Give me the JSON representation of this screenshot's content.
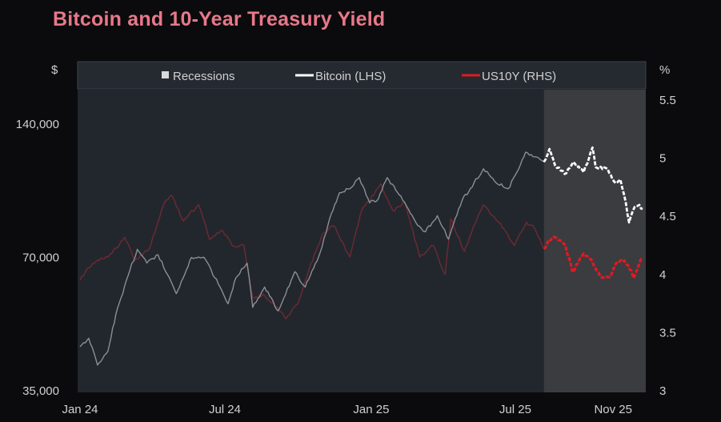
{
  "title": "Bitcoin and 10-Year Treasury Yield",
  "colors": {
    "title": "#e8788a",
    "background": "#0b0b0d",
    "plot_background": "#22272d",
    "recession_shade": "#3a3c40",
    "bitcoin_before": "#8a8f96",
    "bitcoin_after": "#ffffff",
    "us10y_before": "#6e2a33",
    "us10y_after": "#e01a22"
  },
  "chart_data": {
    "type": "line",
    "title": "Bitcoin and 10-Year Treasury Yield",
    "left_axis": {
      "unit": "$",
      "scale": "log",
      "range": [
        35000,
        170000
      ],
      "ticks": [
        {
          "value": 35000,
          "label": "35,000"
        },
        {
          "value": 70000,
          "label": "70,000"
        },
        {
          "value": 140000,
          "label": "140,000"
        }
      ]
    },
    "right_axis": {
      "unit": "%",
      "range": [
        3.0,
        5.55
      ],
      "ticks": [
        {
          "value": 3,
          "label": "3"
        },
        {
          "value": 3.5,
          "label": "3.5"
        },
        {
          "value": 4,
          "label": "4"
        },
        {
          "value": 4.5,
          "label": "4.5"
        },
        {
          "value": 5,
          "label": "5"
        },
        {
          "value": 5.5,
          "label": "5.5"
        }
      ]
    },
    "x_axis": {
      "range": [
        "2024-01-01",
        "2025-12-10"
      ],
      "ticks": [
        {
          "value": "2024-01-01",
          "label": "Jan 24"
        },
        {
          "value": "2024-07-01",
          "label": "Jul 24"
        },
        {
          "value": "2025-01-01",
          "label": "Jan 25"
        },
        {
          "value": "2025-07-01",
          "label": "Jul 25"
        },
        {
          "value": "2025-11-01",
          "label": "Nov 25"
        }
      ]
    },
    "legend": {
      "placement": "top",
      "items": [
        {
          "label": "Recessions",
          "symbol": "square"
        },
        {
          "label": "Bitcoin (LHS)",
          "symbol": "line"
        },
        {
          "label": "US10Y (RHS)",
          "symbol": "line"
        }
      ]
    },
    "shaded_region": {
      "label": "Recessions",
      "start": "2025-08-06",
      "end": "2025-12-10"
    },
    "grid": false,
    "series": [
      {
        "name": "Bitcoin (LHS)",
        "axis": "left",
        "points": [
          [
            "2024-01-01",
            44000
          ],
          [
            "2024-01-12",
            46000
          ],
          [
            "2024-01-23",
            40000
          ],
          [
            "2024-02-05",
            43000
          ],
          [
            "2024-02-15",
            52000
          ],
          [
            "2024-02-28",
            62000
          ],
          [
            "2024-03-13",
            73000
          ],
          [
            "2024-03-25",
            68000
          ],
          [
            "2024-04-08",
            71000
          ],
          [
            "2024-04-20",
            64000
          ],
          [
            "2024-05-01",
            58000
          ],
          [
            "2024-05-20",
            70000
          ],
          [
            "2024-06-05",
            70000
          ],
          [
            "2024-06-25",
            60000
          ],
          [
            "2024-07-05",
            55000
          ],
          [
            "2024-07-15",
            63000
          ],
          [
            "2024-07-29",
            68000
          ],
          [
            "2024-08-05",
            54000
          ],
          [
            "2024-08-20",
            60000
          ],
          [
            "2024-09-06",
            53000
          ],
          [
            "2024-09-27",
            65000
          ],
          [
            "2024-10-10",
            60000
          ],
          [
            "2024-10-29",
            72000
          ],
          [
            "2024-11-12",
            88000
          ],
          [
            "2024-11-22",
            98000
          ],
          [
            "2024-12-05",
            100000
          ],
          [
            "2024-12-17",
            106000
          ],
          [
            "2024-12-30",
            93000
          ],
          [
            "2025-01-10",
            95000
          ],
          [
            "2025-01-21",
            106000
          ],
          [
            "2025-02-05",
            97000
          ],
          [
            "2025-02-26",
            84000
          ],
          [
            "2025-03-10",
            80000
          ],
          [
            "2025-03-25",
            87000
          ],
          [
            "2025-04-08",
            77000
          ],
          [
            "2025-04-25",
            94000
          ],
          [
            "2025-05-10",
            103000
          ],
          [
            "2025-05-22",
            111000
          ],
          [
            "2025-06-05",
            104000
          ],
          [
            "2025-06-22",
            100000
          ],
          [
            "2025-07-03",
            109000
          ],
          [
            "2025-07-14",
            121000
          ],
          [
            "2025-07-28",
            118000
          ],
          [
            "2025-08-06",
            115000
          ],
          [
            "2025-08-13",
            123000
          ],
          [
            "2025-08-20",
            113000
          ],
          [
            "2025-09-01",
            108000
          ],
          [
            "2025-09-12",
            115000
          ],
          [
            "2025-09-25",
            109000
          ],
          [
            "2025-10-06",
            124000
          ],
          [
            "2025-10-10",
            112000
          ],
          [
            "2025-10-25",
            111000
          ],
          [
            "2025-11-04",
            103000
          ],
          [
            "2025-11-10",
            105000
          ],
          [
            "2025-11-17",
            93000
          ],
          [
            "2025-11-21",
            84000
          ],
          [
            "2025-11-28",
            91000
          ],
          [
            "2025-12-04",
            92000
          ],
          [
            "2025-12-08",
            90000
          ]
        ]
      },
      {
        "name": "US10Y (RHS)",
        "axis": "right",
        "points": [
          [
            "2024-01-01",
            3.95
          ],
          [
            "2024-01-10",
            4.05
          ],
          [
            "2024-01-25",
            4.12
          ],
          [
            "2024-02-10",
            4.18
          ],
          [
            "2024-02-26",
            4.32
          ],
          [
            "2024-03-10",
            4.12
          ],
          [
            "2024-03-28",
            4.22
          ],
          [
            "2024-04-15",
            4.6
          ],
          [
            "2024-04-25",
            4.68
          ],
          [
            "2024-05-10",
            4.46
          ],
          [
            "2024-05-29",
            4.6
          ],
          [
            "2024-06-12",
            4.3
          ],
          [
            "2024-06-28",
            4.38
          ],
          [
            "2024-07-10",
            4.25
          ],
          [
            "2024-07-25",
            4.25
          ],
          [
            "2024-08-05",
            3.8
          ],
          [
            "2024-08-20",
            3.82
          ],
          [
            "2024-09-05",
            3.72
          ],
          [
            "2024-09-16",
            3.62
          ],
          [
            "2024-10-01",
            3.75
          ],
          [
            "2024-10-15",
            4.05
          ],
          [
            "2024-11-01",
            4.35
          ],
          [
            "2024-11-15",
            4.42
          ],
          [
            "2024-12-05",
            4.15
          ],
          [
            "2024-12-20",
            4.55
          ],
          [
            "2025-01-13",
            4.78
          ],
          [
            "2025-01-28",
            4.55
          ],
          [
            "2025-02-12",
            4.62
          ],
          [
            "2025-03-03",
            4.15
          ],
          [
            "2025-03-20",
            4.25
          ],
          [
            "2025-04-04",
            4.0
          ],
          [
            "2025-04-11",
            4.48
          ],
          [
            "2025-04-28",
            4.2
          ],
          [
            "2025-05-15",
            4.5
          ],
          [
            "2025-05-22",
            4.6
          ],
          [
            "2025-06-10",
            4.45
          ],
          [
            "2025-06-30",
            4.25
          ],
          [
            "2025-07-15",
            4.45
          ],
          [
            "2025-07-25",
            4.4
          ],
          [
            "2025-08-06",
            4.22
          ],
          [
            "2025-08-12",
            4.3
          ],
          [
            "2025-08-20",
            4.32
          ],
          [
            "2025-09-02",
            4.25
          ],
          [
            "2025-09-11",
            4.02
          ],
          [
            "2025-09-25",
            4.18
          ],
          [
            "2025-10-05",
            4.12
          ],
          [
            "2025-10-16",
            3.98
          ],
          [
            "2025-10-28",
            3.98
          ],
          [
            "2025-11-05",
            4.1
          ],
          [
            "2025-11-15",
            4.12
          ],
          [
            "2025-11-24",
            4.03
          ],
          [
            "2025-11-27",
            3.97
          ],
          [
            "2025-12-01",
            4.04
          ],
          [
            "2025-12-04",
            4.1
          ],
          [
            "2025-12-08",
            4.14
          ]
        ]
      }
    ]
  }
}
